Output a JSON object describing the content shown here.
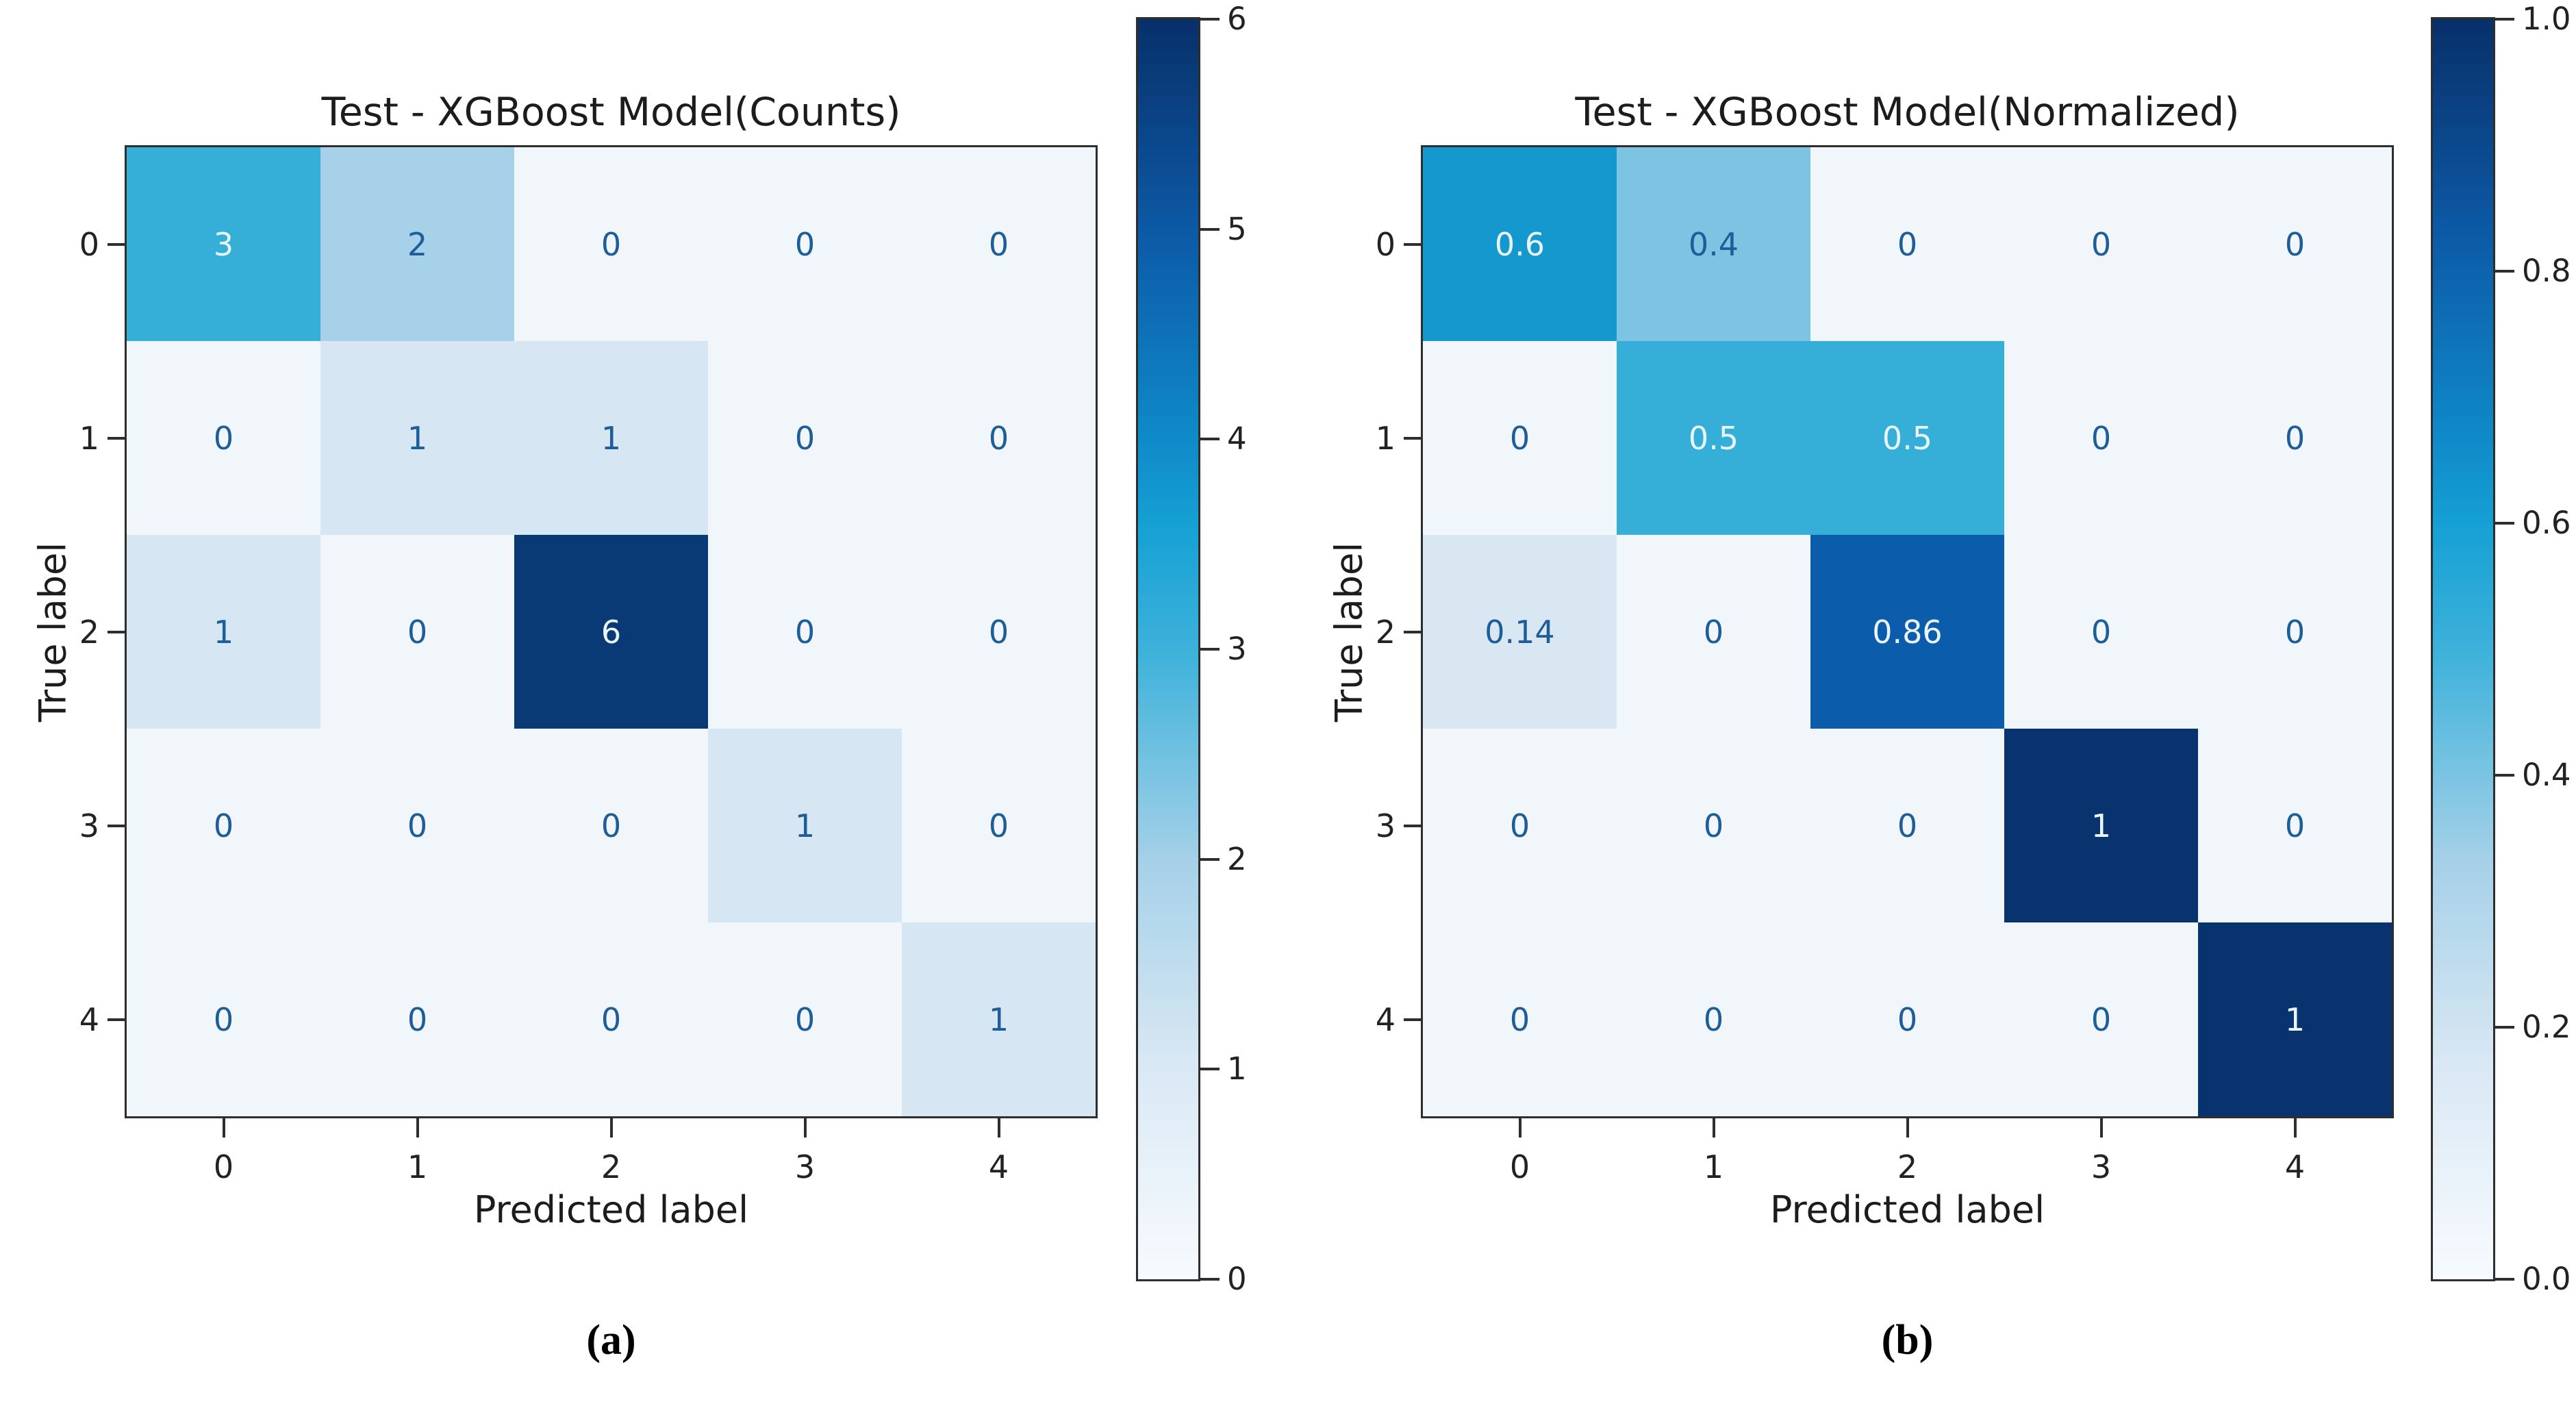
{
  "figure": {
    "background": "#ffffff"
  },
  "colors": {
    "cell_text_dark": "#1d5d99",
    "cell_text_light": "#eaf4fb",
    "spine": "#2e2e2e",
    "tick": "#2e2e2e",
    "title_text": "#1c1c1c",
    "background": "#ffffff"
  },
  "colormap_stops": [
    {
      "frac": 0.0,
      "color": "#f7fbfe"
    },
    {
      "frac": 0.17,
      "color": "#d9e8f4"
    },
    {
      "frac": 0.33,
      "color": "#a6d1e8"
    },
    {
      "frac": 0.5,
      "color": "#3cb1da"
    },
    {
      "frac": 0.6,
      "color": "#15a0d4"
    },
    {
      "frac": 0.67,
      "color": "#0f89c8"
    },
    {
      "frac": 0.83,
      "color": "#0c5aa6"
    },
    {
      "frac": 1.0,
      "color": "#08306a"
    }
  ],
  "chart_data": [
    {
      "type": "heatmap",
      "title": "Test - XGBoost Model(Counts)",
      "xlabel": "Predicted label",
      "ylabel": "True label",
      "x_ticklabels": [
        "0",
        "1",
        "2",
        "3",
        "4"
      ],
      "y_ticklabels": [
        "0",
        "1",
        "2",
        "3",
        "4"
      ],
      "labels": [
        [
          "3",
          "2",
          "0",
          "0",
          "0"
        ],
        [
          "0",
          "1",
          "1",
          "0",
          "0"
        ],
        [
          "1",
          "0",
          "6",
          "0",
          "0"
        ],
        [
          "0",
          "0",
          "0",
          "1",
          "0"
        ],
        [
          "0",
          "0",
          "0",
          "0",
          "1"
        ]
      ],
      "values": [
        [
          3,
          2,
          0,
          0,
          0
        ],
        [
          0,
          1,
          1,
          0,
          0
        ],
        [
          1,
          0,
          6,
          0,
          0
        ],
        [
          0,
          0,
          0,
          1,
          0
        ],
        [
          0,
          0,
          0,
          0,
          1
        ]
      ],
      "vmin": 0,
      "vmax": 6,
      "color_scale": {
        "0": "#f1f6fb",
        "1": "#d7e6f3",
        "2": "#a6d1e8",
        "3": "#35aed8",
        "6": "#0a3a75"
      },
      "colorbar_ticks": [
        {
          "label": "6",
          "value": 6
        },
        {
          "label": "5",
          "value": 5
        },
        {
          "label": "4",
          "value": 4
        },
        {
          "label": "3",
          "value": 3
        },
        {
          "label": "2",
          "value": 2
        },
        {
          "label": "1",
          "value": 1
        },
        {
          "label": "0",
          "value": 0
        }
      ],
      "caption": "(a)"
    },
    {
      "type": "heatmap",
      "title": "Test - XGBoost Model(Normalized)",
      "xlabel": "Predicted label",
      "ylabel": "True label",
      "x_ticklabels": [
        "0",
        "1",
        "2",
        "3",
        "4"
      ],
      "y_ticklabels": [
        "0",
        "1",
        "2",
        "3",
        "4"
      ],
      "labels": [
        [
          "0.6",
          "0.4",
          "0",
          "0",
          "0"
        ],
        [
          "0",
          "0.5",
          "0.5",
          "0",
          "0"
        ],
        [
          "0.14",
          "0",
          "0.86",
          "0",
          "0"
        ],
        [
          "0",
          "0",
          "0",
          "1",
          "0"
        ],
        [
          "0",
          "0",
          "0",
          "0",
          "1"
        ]
      ],
      "values": [
        [
          0.6,
          0.4,
          0,
          0,
          0
        ],
        [
          0,
          0.5,
          0.5,
          0,
          0
        ],
        [
          0.14,
          0,
          0.86,
          0,
          0
        ],
        [
          0,
          0,
          0,
          1,
          0
        ],
        [
          0,
          0,
          0,
          0,
          1
        ]
      ],
      "vmin": 0,
      "vmax": 1,
      "color_scale": {
        "0": "#f1f6fb",
        "0.14": "#d9e7f2",
        "0.4": "#7cc4e2",
        "0.5": "#35aed8",
        "0.6": "#1598cd",
        "0.86": "#0b5cab",
        "1": "#09336e"
      },
      "colorbar_ticks": [
        {
          "label": "1.0",
          "value": 1.0
        },
        {
          "label": "0.8",
          "value": 0.8
        },
        {
          "label": "0.6",
          "value": 0.6
        },
        {
          "label": "0.4",
          "value": 0.4
        },
        {
          "label": "0.2",
          "value": 0.2
        },
        {
          "label": "0.0",
          "value": 0.0
        }
      ],
      "caption": "(b)"
    }
  ]
}
